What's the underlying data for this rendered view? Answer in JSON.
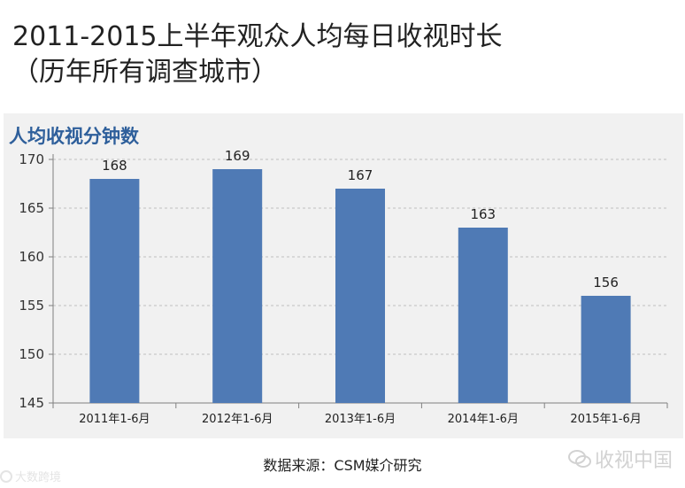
{
  "header": {
    "title_line1": "2011-2015上半年观众人均每日收视时长",
    "title_line2": "（历年所有调查城市）"
  },
  "chart_data": {
    "type": "bar",
    "ylabel": "人均收视分钟数",
    "categories": [
      "2011年1-6月",
      "2012年1-6月",
      "2013年1-6月",
      "2014年1-6月",
      "2015年1-6月"
    ],
    "values": [
      168,
      169,
      167,
      163,
      156
    ],
    "ylim": [
      145,
      170
    ],
    "yticks": [
      145,
      150,
      155,
      160,
      165,
      170
    ],
    "grid": true,
    "bar_color": "#4f7ab5"
  },
  "footer": {
    "source": "数据来源：CSM媒介研究",
    "watermark_right": "收视中国",
    "watermark_left": "大数跨境"
  }
}
